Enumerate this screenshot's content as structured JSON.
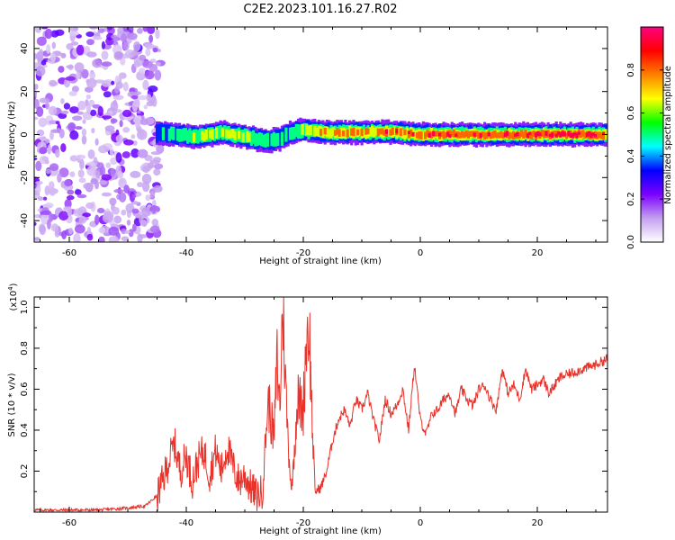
{
  "figure": {
    "title": "C2E2.2023.101.16.27.R02"
  },
  "chart_data": [
    {
      "type": "heatmap",
      "title": "C2E2.2023.101.16.27.R02",
      "xlabel": "Height of straight line (km)",
      "ylabel": "Frequency (Hz)",
      "xlim": [
        -66,
        32
      ],
      "ylim": [
        -50,
        50
      ],
      "xticks": [
        -60,
        -40,
        -20,
        0,
        20
      ],
      "yticks": [
        -40,
        -20,
        0,
        20,
        40
      ],
      "colorbar": {
        "label": "Normalized spectral amplitude",
        "range": [
          0,
          1
        ],
        "ticks": [
          0.0,
          0.2,
          0.4,
          0.6,
          0.8
        ],
        "colormap": [
          "#ffffff",
          "#c4a0f0",
          "#7b00ff",
          "#0000ff",
          "#00ffff",
          "#00ff00",
          "#ffff00",
          "#ff8000",
          "#ff0000",
          "#ff0080"
        ]
      },
      "noise_region_x": [
        -66,
        -45
      ],
      "signal_trace": {
        "x": [
          -45,
          -42,
          -38,
          -34,
          -30,
          -26,
          -24,
          -22,
          -20,
          -16,
          -12,
          -8,
          -4,
          0,
          4,
          8,
          12,
          16,
          20,
          24,
          28,
          32
        ],
        "frequency": [
          1,
          0,
          -1,
          1,
          -1,
          -3,
          -2,
          1,
          2,
          1,
          1,
          1,
          1,
          0,
          0,
          0,
          0,
          0,
          0,
          0,
          0,
          0
        ],
        "amplitude": [
          0.35,
          0.5,
          0.55,
          0.6,
          0.6,
          0.5,
          0.45,
          0.5,
          0.6,
          0.75,
          0.8,
          0.8,
          0.85,
          0.85,
          0.9,
          0.9,
          0.9,
          0.9,
          0.9,
          0.95,
          0.9,
          0.8
        ]
      }
    },
    {
      "type": "line",
      "xlabel": "Height of straight line (km)",
      "ylabel": "SNR (10 * v/v)",
      "yscale_label": "(x10",
      "yscale_exp": "4",
      "yscale_close": ")",
      "xlim": [
        -66,
        32
      ],
      "ylim": [
        0,
        1.05
      ],
      "xticks": [
        -60,
        -40,
        -20,
        0,
        20
      ],
      "yticks": [
        0.2,
        0.4,
        0.6,
        0.8,
        1.0
      ],
      "series": [
        {
          "color": "#e8322a",
          "x": [
            -66,
            -60,
            -55,
            -50,
            -47,
            -45,
            -44,
            -43,
            -42,
            -41,
            -40,
            -39,
            -38,
            -37,
            -36,
            -35,
            -34,
            -33,
            -32,
            -31,
            -30,
            -29,
            -28,
            -27,
            -26,
            -25,
            -24.5,
            -24,
            -23.5,
            -23,
            -22.5,
            -22,
            -21,
            -20,
            -19.5,
            -19,
            -18.5,
            -18,
            -17,
            -16,
            -15,
            -14,
            -13,
            -12,
            -11,
            -10,
            -9,
            -8,
            -7,
            -6,
            -5,
            -4,
            -3,
            -2,
            -1,
            0,
            1,
            2,
            3,
            4,
            5,
            6,
            7,
            8,
            9,
            10,
            11,
            12,
            13,
            14,
            15,
            16,
            17,
            18,
            19,
            20,
            21,
            22,
            24,
            26,
            28,
            30,
            32
          ],
          "values": [
            0.01,
            0.01,
            0.01,
            0.02,
            0.03,
            0.08,
            0.15,
            0.25,
            0.33,
            0.2,
            0.28,
            0.15,
            0.25,
            0.3,
            0.18,
            0.3,
            0.2,
            0.32,
            0.22,
            0.15,
            0.18,
            0.12,
            0.08,
            0.1,
            0.55,
            0.35,
            0.75,
            0.5,
            1.05,
            0.6,
            0.3,
            0.1,
            0.55,
            0.5,
            0.85,
            0.92,
            0.45,
            0.1,
            0.12,
            0.2,
            0.35,
            0.45,
            0.5,
            0.42,
            0.55,
            0.5,
            0.58,
            0.45,
            0.35,
            0.55,
            0.48,
            0.52,
            0.6,
            0.4,
            0.72,
            0.45,
            0.38,
            0.48,
            0.5,
            0.55,
            0.58,
            0.48,
            0.6,
            0.55,
            0.52,
            0.6,
            0.62,
            0.55,
            0.5,
            0.7,
            0.58,
            0.62,
            0.55,
            0.7,
            0.6,
            0.62,
            0.65,
            0.58,
            0.66,
            0.68,
            0.7,
            0.72,
            0.75
          ]
        }
      ]
    }
  ]
}
